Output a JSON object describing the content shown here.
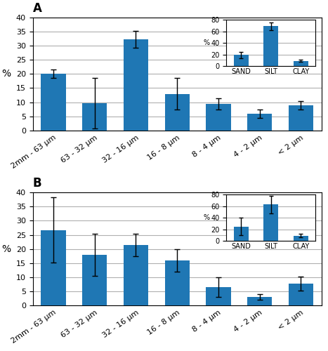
{
  "chart_data": [
    {
      "type": "bar",
      "title": "A",
      "categories": [
        "2mm - 63 μm",
        "63 - 32 μm",
        "32 - 16 μm",
        "16 - 8 μm",
        "8 - 4 μm",
        "4 - 2 μm",
        "< 2 μm"
      ],
      "values": [
        20.0,
        9.7,
        32.3,
        13.0,
        9.5,
        6.0,
        9.0
      ],
      "errors": [
        1.5,
        9.0,
        3.0,
        5.5,
        2.0,
        1.5,
        1.5
      ],
      "y_label": "%",
      "ylim": [
        0,
        40
      ],
      "yticks": [
        0,
        5,
        10,
        15,
        20,
        25,
        30,
        35,
        40
      ],
      "grid": true
    },
    {
      "type": "bar",
      "categories": [
        "SAND",
        "SILT",
        "CLAY"
      ],
      "values": [
        19.0,
        69.0,
        9.0
      ],
      "errors": [
        6.0,
        7.0,
        2.0
      ],
      "y_label": "%",
      "ylim": [
        0,
        80
      ],
      "yticks": [
        0,
        20,
        40,
        60,
        80
      ],
      "grid": true
    },
    {
      "type": "bar",
      "title": "B",
      "categories": [
        "2mm - 63 μm",
        "63 - 32 μm",
        "32 - 16 μm",
        "16 - 8 μm",
        "8 - 4 μm",
        "4 - 2 μm",
        "< 2 μm"
      ],
      "values": [
        26.7,
        18.0,
        21.5,
        16.0,
        6.5,
        3.0,
        7.8
      ],
      "errors": [
        11.5,
        7.5,
        4.0,
        4.0,
        3.5,
        1.0,
        2.5
      ],
      "y_label": "%",
      "ylim": [
        0,
        40
      ],
      "yticks": [
        0,
        5,
        10,
        15,
        20,
        25,
        30,
        35,
        40
      ],
      "grid": true
    },
    {
      "type": "bar",
      "categories": [
        "SAND",
        "SILT",
        "CLAY"
      ],
      "values": [
        25.0,
        63.0,
        9.0
      ],
      "errors": [
        15.0,
        15.0,
        3.0
      ],
      "y_label": "%",
      "ylim": [
        0,
        80
      ],
      "yticks": [
        0,
        20,
        40,
        60,
        80
      ],
      "grid": true
    }
  ]
}
